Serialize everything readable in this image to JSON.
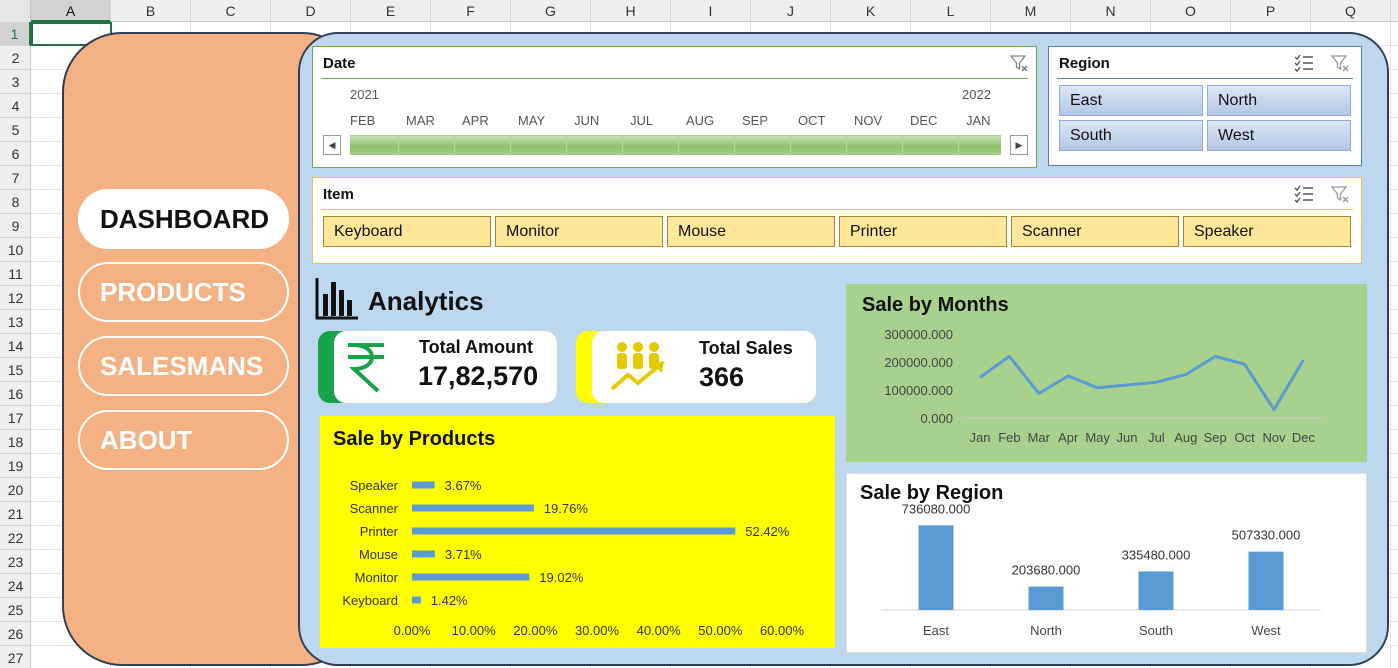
{
  "sheet": {
    "columns": [
      "A",
      "B",
      "C",
      "D",
      "E",
      "F",
      "G",
      "H",
      "I",
      "J",
      "K",
      "L",
      "M",
      "N",
      "O",
      "P",
      "Q"
    ],
    "rows": [
      "1",
      "2",
      "3",
      "4",
      "5",
      "6",
      "7",
      "8",
      "9",
      "10",
      "11",
      "12",
      "13",
      "14",
      "15",
      "16",
      "17",
      "18",
      "19",
      "20",
      "21",
      "22",
      "23",
      "24",
      "25",
      "26",
      "27"
    ],
    "active_cell": "A1"
  },
  "nav": {
    "items": [
      {
        "label": "DASHBOARD",
        "active": true
      },
      {
        "label": "PRODUCTS",
        "active": false
      },
      {
        "label": "SALESMANS",
        "active": false
      },
      {
        "label": "ABOUT",
        "active": false
      }
    ]
  },
  "date_slicer": {
    "title": "Date",
    "year_start": "2021",
    "year_end": "2022",
    "months": [
      "FEB",
      "MAR",
      "APR",
      "MAY",
      "JUN",
      "JUL",
      "AUG",
      "SEP",
      "OCT",
      "NOV",
      "DEC",
      "JAN"
    ],
    "clear_filter_icon": "clear-filter-icon"
  },
  "region_slicer": {
    "title": "Region",
    "items": [
      "East",
      "North",
      "South",
      "West"
    ],
    "multiselect_icon": "multiselect-icon",
    "clear_filter_icon": "clear-filter-icon"
  },
  "item_slicer": {
    "title": "Item",
    "items": [
      "Keyboard",
      "Monitor",
      "Mouse",
      "Printer",
      "Scanner",
      "Speaker"
    ]
  },
  "analytics": {
    "title": "Analytics",
    "icon": "bar-chart-icon"
  },
  "kpis": {
    "amount": {
      "label": "Total Amount",
      "value": "17,82,570",
      "icon": "rupee-icon",
      "accent": "#16a34a"
    },
    "sales": {
      "label": "Total Sales",
      "value": "366",
      "icon": "people-growth-icon",
      "accent": "#ffff00"
    }
  },
  "colors": {
    "nav_panel": "#f4b183",
    "main_panel": "#bdd7ee",
    "bar_blue": "#5b9bd5",
    "products_bg": "#ffff00",
    "months_bg": "#a9d18e"
  },
  "chart_data": [
    {
      "type": "bar",
      "orientation": "horizontal",
      "title": "Sale by Products",
      "categories": [
        "Speaker",
        "Scanner",
        "Printer",
        "Mouse",
        "Monitor",
        "Keyboard"
      ],
      "values": [
        3.67,
        19.76,
        52.42,
        3.71,
        19.02,
        1.42
      ],
      "data_labels": [
        "3.67%",
        "19.76%",
        "52.42%",
        "3.71%",
        "19.02%",
        "1.42%"
      ],
      "xticks": [
        "0.00%",
        "10.00%",
        "20.00%",
        "30.00%",
        "40.00%",
        "50.00%",
        "60.00%"
      ],
      "xlim": [
        0,
        60
      ],
      "grid": false
    },
    {
      "type": "line",
      "title": "Sale by Months",
      "categories": [
        "Jan",
        "Feb",
        "Mar",
        "Apr",
        "May",
        "Jun",
        "Jul",
        "Aug",
        "Sep",
        "Oct",
        "Nov",
        "Dec"
      ],
      "values": [
        145000,
        220000,
        88000,
        150000,
        108000,
        118000,
        128000,
        155000,
        220000,
        192000,
        30000,
        207000
      ],
      "yticks": [
        "300000.000",
        "200000.000",
        "100000.000",
        "0.000"
      ],
      "ylim": [
        0,
        300000
      ],
      "grid": false
    },
    {
      "type": "bar",
      "title": "Sale by Region",
      "categories": [
        "East",
        "North",
        "South",
        "West"
      ],
      "values": [
        736080,
        203680,
        335480,
        507330
      ],
      "data_labels": [
        "736080.000",
        "203680.000",
        "335480.000",
        "507330.000"
      ],
      "ylim": [
        0,
        800000
      ],
      "grid": false
    }
  ]
}
